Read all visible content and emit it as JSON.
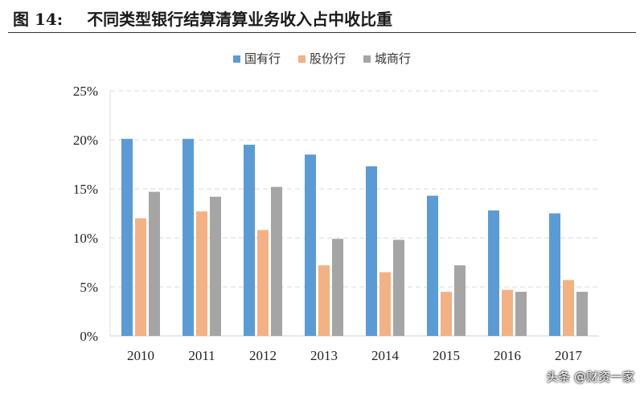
{
  "chart_data": {
    "type": "bar",
    "title_prefix": "图 14:",
    "title": "不同类型银行结算清算业务收入占中收比重",
    "categories": [
      "2010",
      "2011",
      "2012",
      "2013",
      "2014",
      "2015",
      "2016",
      "2017"
    ],
    "series": [
      {
        "name": "国有行",
        "color": "#5b9bd5",
        "values": [
          20.1,
          20.1,
          19.5,
          18.5,
          17.3,
          14.3,
          12.8,
          12.5
        ]
      },
      {
        "name": "股份行",
        "color": "#f4b183",
        "values": [
          12.0,
          12.7,
          10.8,
          7.2,
          6.5,
          4.5,
          4.7,
          5.7
        ]
      },
      {
        "name": "城商行",
        "color": "#a5a5a5",
        "values": [
          14.7,
          14.2,
          15.2,
          9.9,
          9.8,
          7.2,
          4.5,
          4.5
        ]
      }
    ],
    "ylim": [
      0,
      25
    ],
    "yticks": [
      "0%",
      "5%",
      "10%",
      "15%",
      "20%",
      "25%"
    ],
    "grid": true,
    "legend": "top"
  },
  "watermark": "头条 @财资一家"
}
